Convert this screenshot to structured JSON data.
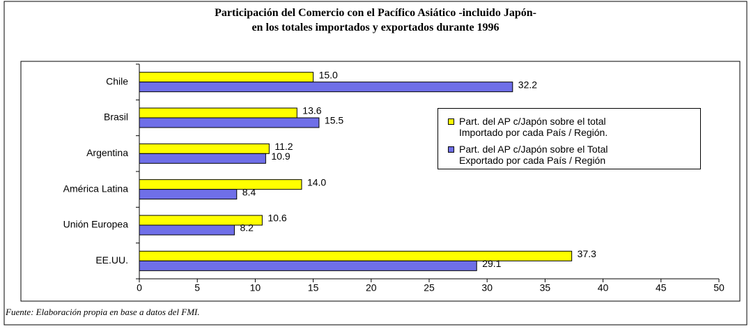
{
  "chart_data": {
    "type": "barh",
    "title": "Participación del Comercio con el Pacífico Asiático -incluido Japón-\nen los totales importados y exportados durante 1996",
    "categories": [
      "Chile",
      "Brasil",
      "Argentina",
      "América Latina",
      "Unión Europea",
      "EE.UU."
    ],
    "series": [
      {
        "name": "Part. del AP c/Japón sobre el total\nImportado por cada País / Región.",
        "color": "#ffff00",
        "values": [
          15.0,
          13.6,
          11.2,
          14.0,
          10.6,
          37.3
        ],
        "value_labels": [
          "15.0",
          "13.6",
          "11.2",
          "14.0",
          "10.6",
          "37.3"
        ]
      },
      {
        "name": "Part. del AP c/Japón sobre el Total\nExportado por cada País / Región",
        "color": "#6f6fe8",
        "values": [
          32.2,
          15.5,
          10.9,
          8.4,
          8.2,
          29.1
        ],
        "value_labels": [
          "32.2",
          "15.5",
          "10.9",
          "8.4",
          "8.2",
          "29.1"
        ]
      }
    ],
    "xlim": [
      0,
      50
    ],
    "xticks": [
      0,
      5,
      10,
      15,
      20,
      25,
      30,
      35,
      40,
      45,
      50
    ],
    "grid": false,
    "legend": "right",
    "source": "Fuente: Elaboración propia en base a datos del FMI."
  }
}
